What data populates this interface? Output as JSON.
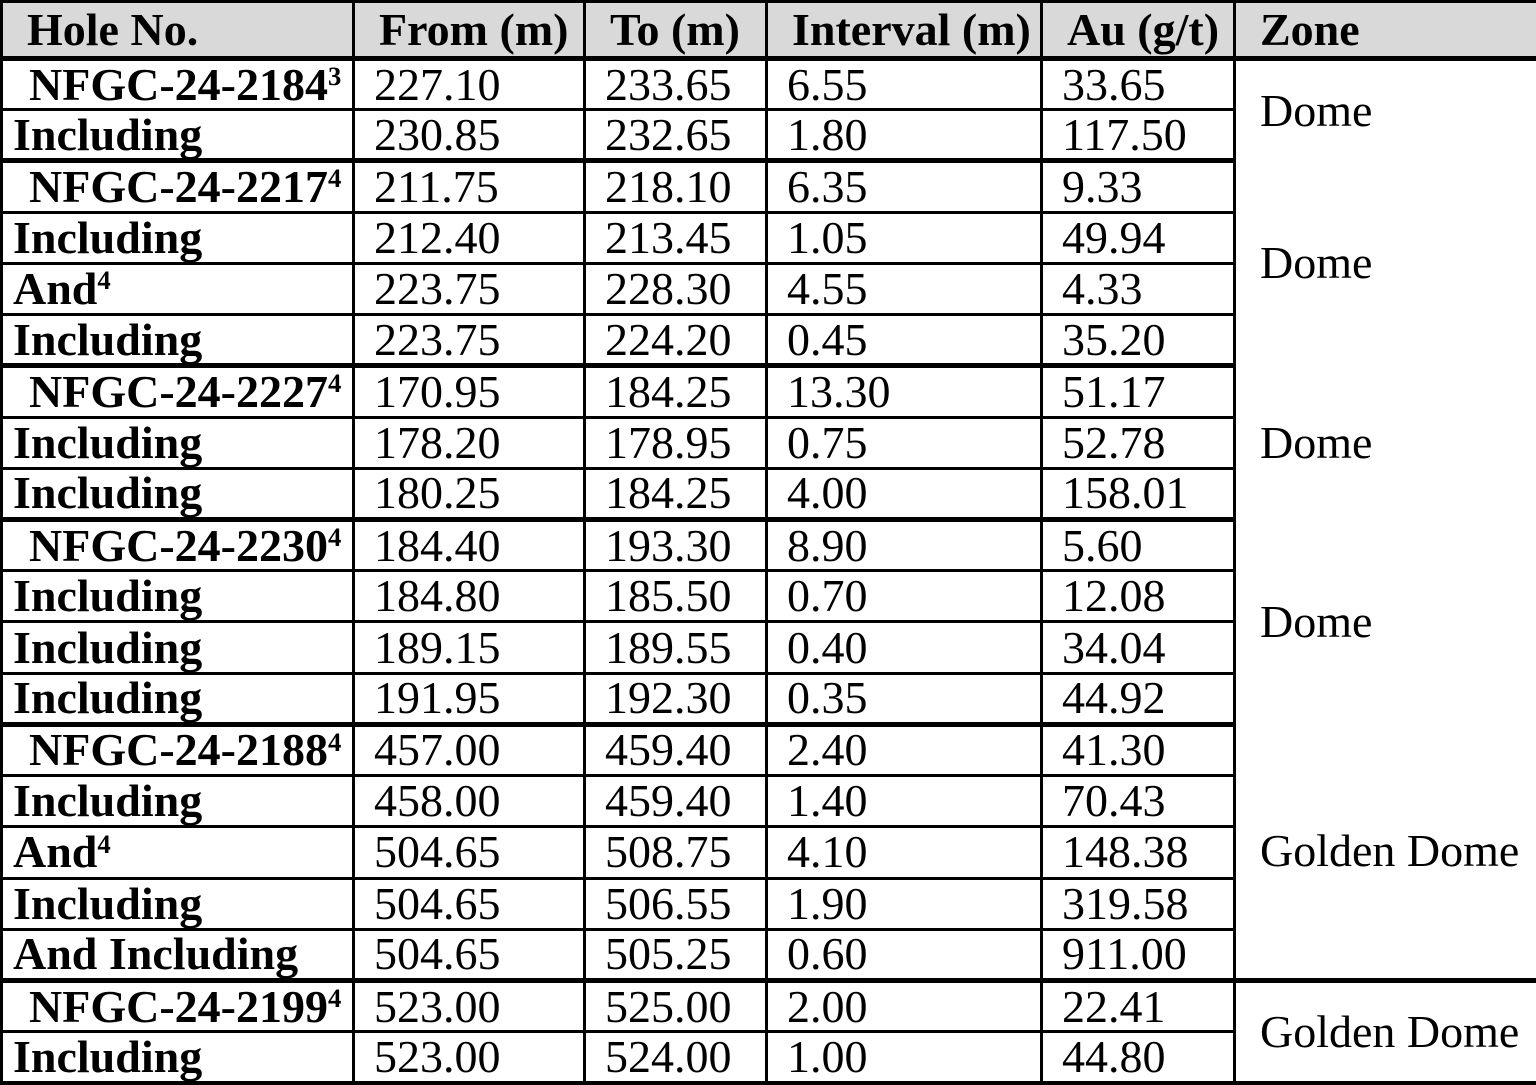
{
  "table": {
    "title": "drill-intercept-results",
    "columns": [
      {
        "key": "hole",
        "label": "Hole No."
      },
      {
        "key": "from",
        "label": "From (m)"
      },
      {
        "key": "to",
        "label": "To (m)"
      },
      {
        "key": "interval",
        "label": "Interval (m)"
      },
      {
        "key": "au",
        "label": "Au (g/t)"
      },
      {
        "key": "zone",
        "label": "Zone"
      }
    ],
    "groups": [
      {
        "zone": "Dome",
        "rows": [
          {
            "type": "hole",
            "hole": "NFGC-24-2184",
            "sup": "3",
            "from": "227.10",
            "to": "233.65",
            "interval": "6.55",
            "au": "33.65"
          },
          {
            "type": "sub",
            "hole": "Including",
            "sup": "",
            "from": "230.85",
            "to": "232.65",
            "interval": "1.80",
            "au": "117.50"
          }
        ]
      },
      {
        "zone": "Dome",
        "rows": [
          {
            "type": "hole",
            "hole": "NFGC-24-2217",
            "sup": "4",
            "from": "211.75",
            "to": "218.10",
            "interval": "6.35",
            "au": "9.33"
          },
          {
            "type": "sub",
            "hole": "Including",
            "sup": "",
            "from": "212.40",
            "to": "213.45",
            "interval": "1.05",
            "au": "49.94"
          },
          {
            "type": "sub",
            "hole": "And",
            "sup": "4",
            "from": "223.75",
            "to": "228.30",
            "interval": "4.55",
            "au": "4.33"
          },
          {
            "type": "sub",
            "hole": "Including",
            "sup": "",
            "from": "223.75",
            "to": "224.20",
            "interval": "0.45",
            "au": "35.20"
          }
        ]
      },
      {
        "zone": "Dome",
        "rows": [
          {
            "type": "hole",
            "hole": "NFGC-24-2227",
            "sup": "4",
            "from": "170.95",
            "to": "184.25",
            "interval": "13.30",
            "au": "51.17"
          },
          {
            "type": "sub",
            "hole": "Including",
            "sup": "",
            "from": "178.20",
            "to": "178.95",
            "interval": "0.75",
            "au": "52.78"
          },
          {
            "type": "sub",
            "hole": "Including",
            "sup": "",
            "from": "180.25",
            "to": "184.25",
            "interval": "4.00",
            "au": "158.01"
          }
        ]
      },
      {
        "zone": "Dome",
        "rows": [
          {
            "type": "hole",
            "hole": "NFGC-24-2230",
            "sup": "4",
            "from": "184.40",
            "to": "193.30",
            "interval": "8.90",
            "au": "5.60"
          },
          {
            "type": "sub",
            "hole": "Including",
            "sup": "",
            "from": "184.80",
            "to": "185.50",
            "interval": "0.70",
            "au": "12.08"
          },
          {
            "type": "sub",
            "hole": "Including",
            "sup": "",
            "from": "189.15",
            "to": "189.55",
            "interval": "0.40",
            "au": "34.04"
          },
          {
            "type": "sub",
            "hole": "Including",
            "sup": "",
            "from": "191.95",
            "to": "192.30",
            "interval": "0.35",
            "au": "44.92"
          }
        ]
      },
      {
        "zone": "Golden Dome",
        "rows": [
          {
            "type": "hole",
            "hole": "NFGC-24-2188",
            "sup": "4",
            "from": "457.00",
            "to": "459.40",
            "interval": "2.40",
            "au": "41.30"
          },
          {
            "type": "sub",
            "hole": "Including",
            "sup": "",
            "from": "458.00",
            "to": "459.40",
            "interval": "1.40",
            "au": "70.43"
          },
          {
            "type": "sub",
            "hole": "And",
            "sup": "4",
            "from": "504.65",
            "to": "508.75",
            "interval": "4.10",
            "au": "148.38"
          },
          {
            "type": "sub",
            "hole": "Including",
            "sup": "",
            "from": "504.65",
            "to": "506.55",
            "interval": "1.90",
            "au": "319.58"
          },
          {
            "type": "sub",
            "hole": "And Including",
            "sup": "",
            "from": "504.65",
            "to": "505.25",
            "interval": "0.60",
            "au": "911.00"
          }
        ]
      },
      {
        "zone": "Golden Dome",
        "zone_divider": true,
        "rows": [
          {
            "type": "hole",
            "hole": "NFGC-24-2199",
            "sup": "4",
            "from": "523.00",
            "to": "525.00",
            "interval": "2.00",
            "au": "22.41"
          },
          {
            "type": "sub",
            "hole": "Including",
            "sup": "",
            "from": "523.00",
            "to": "524.00",
            "interval": "1.00",
            "au": "44.80"
          }
        ]
      }
    ]
  },
  "style": {
    "header_background": "#d9d9d9",
    "border_color": "#000000",
    "text_color": "#000000"
  }
}
